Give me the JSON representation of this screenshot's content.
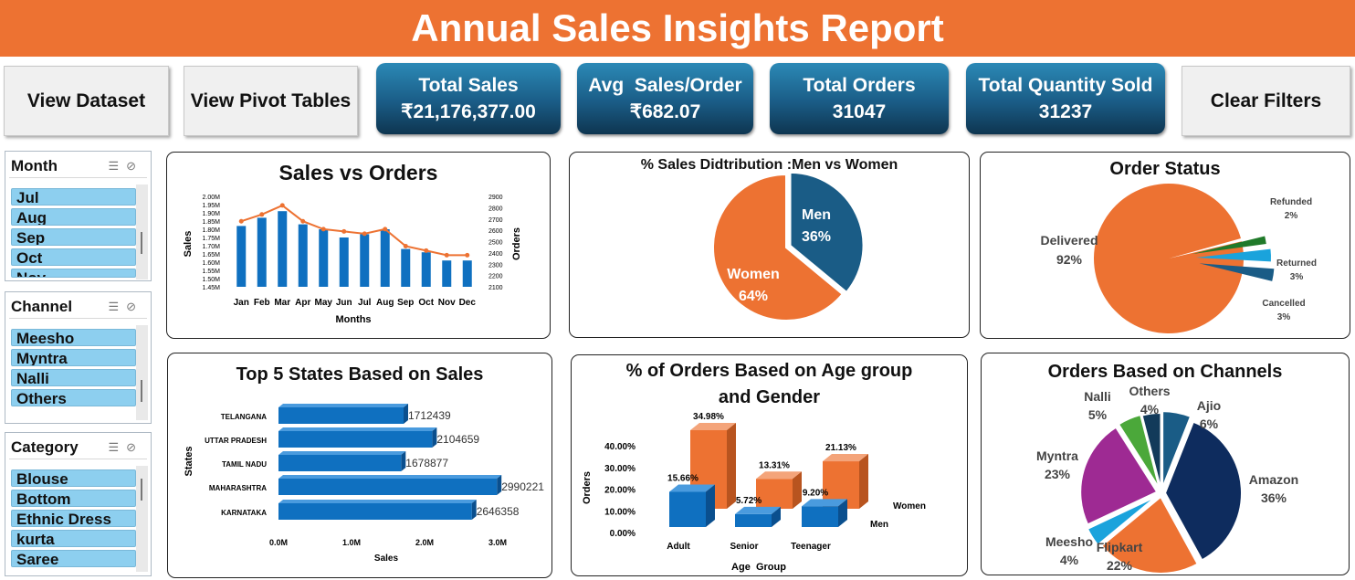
{
  "title": "Annual Sales Insights Report",
  "buttons": {
    "view_dataset": "View Dataset",
    "view_pivot": "View Pivot Tables",
    "clear_filters": "Clear Filters"
  },
  "kpis": {
    "total_sales": {
      "label": "Total Sales",
      "value": "₹21,176,377.00"
    },
    "avg_sales": {
      "label": "Avg  Sales/Order",
      "value": "₹682.07"
    },
    "total_orders": {
      "label": "Total Orders",
      "value": "31047"
    },
    "total_qty": {
      "label": "Total Quantity Sold",
      "value": "31237"
    }
  },
  "slicers": {
    "month": {
      "title": "Month",
      "items": [
        "Jul",
        "Aug",
        "Sep",
        "Oct",
        "Nov"
      ]
    },
    "channel": {
      "title": "Channel",
      "items": [
        "Meesho",
        "Myntra",
        "Nalli",
        "Others"
      ]
    },
    "category": {
      "title": "Category",
      "items": [
        "Blouse",
        "Bottom",
        "Ethnic Dress",
        "kurta",
        "Saree"
      ]
    }
  },
  "colors": {
    "orange": "#ED7232",
    "blue": "#0F70C0",
    "navy": "#1A5C86",
    "accent": "#ED7232"
  },
  "chart_data": [
    {
      "id": "sales_vs_orders",
      "type": "bar",
      "title": "Sales vs Orders",
      "xlabel": "Months",
      "ylabel": "Sales",
      "y2label": "Orders",
      "categories": [
        "Jan",
        "Feb",
        "Mar",
        "Apr",
        "May",
        "Jun",
        "Jul",
        "Aug",
        "Sep",
        "Oct",
        "Nov",
        "Dec"
      ],
      "ylim": [
        1.45,
        2.0
      ],
      "y_ticks": [
        "1.45M",
        "1.50M",
        "1.55M",
        "1.60M",
        "1.65M",
        "1.70M",
        "1.75M",
        "1.80M",
        "1.85M",
        "1.90M",
        "1.95M",
        "2.00M"
      ],
      "y2lim": [
        2100,
        2900
      ],
      "y2_ticks": [
        "2100",
        "2200",
        "2300",
        "2400",
        "2500",
        "2600",
        "2700",
        "2800",
        "2900"
      ],
      "series": [
        {
          "type": "bar",
          "axis": "left",
          "values": [
            1.82,
            1.87,
            1.91,
            1.83,
            1.8,
            1.75,
            1.77,
            1.8,
            1.68,
            1.66,
            1.61,
            1.61
          ]
        },
        {
          "type": "line",
          "axis": "right",
          "values": [
            2680,
            2740,
            2820,
            2680,
            2610,
            2590,
            2570,
            2610,
            2460,
            2420,
            2380,
            2380
          ]
        }
      ]
    },
    {
      "id": "gender_sales",
      "type": "pie",
      "title": "% Sales Didtribution :Men vs Women",
      "slices": [
        {
          "label": "Men",
          "pct_label": "36%",
          "value": 36,
          "color": "#1A5C86"
        },
        {
          "label": "Women",
          "pct_label": "64%",
          "value": 64,
          "color": "#ED7232"
        }
      ]
    },
    {
      "id": "order_status",
      "type": "pie",
      "title": "Order Status",
      "slices": [
        {
          "label": "Delivered",
          "pct_label": "92%",
          "value": 92,
          "color": "#ED7232"
        },
        {
          "label": "Refunded",
          "pct_label": "2%",
          "value": 2,
          "color": "#207A2A"
        },
        {
          "label": "Returned",
          "pct_label": "3%",
          "value": 3,
          "color": "#1AA3DC"
        },
        {
          "label": "Cancelled",
          "pct_label": "3%",
          "value": 3,
          "color": "#1A5C86"
        }
      ]
    },
    {
      "id": "top_states",
      "type": "bar",
      "title": "Top 5 States Based on Sales",
      "xlabel": "Sales",
      "ylabel": "States",
      "categories": [
        "TELANGANA",
        "UTTAR PRADESH",
        "TAMIL NADU",
        "MAHARASHTRA",
        "KARNATAKA"
      ],
      "values": [
        1712439,
        2104659,
        1678877,
        2990221,
        2646358
      ],
      "value_labels": [
        "1712439",
        "2104659",
        "1678877",
        "2990221",
        "2646358"
      ],
      "xlim": [
        0,
        3000000
      ],
      "x_ticks": [
        "0.0M",
        "1.0M",
        "2.0M",
        "3.0M"
      ]
    },
    {
      "id": "age_gender_orders",
      "type": "bar",
      "title_line1": "% of Orders Based on Age group",
      "title_line2": "and Gender",
      "xlabel": "Age  Group",
      "ylabel": "Orders",
      "categories": [
        "Adult",
        "Senior",
        "Teenager"
      ],
      "ylim": [
        0,
        40
      ],
      "y_ticks": [
        "0.00%",
        "10.00%",
        "20.00%",
        "30.00%",
        "40.00%"
      ],
      "series": [
        {
          "name": "Men",
          "values": [
            15.66,
            5.72,
            9.2
          ],
          "labels": [
            "15.66%",
            "5.72%",
            "9.20%"
          ]
        },
        {
          "name": "Women",
          "values": [
            34.98,
            13.31,
            21.13
          ],
          "labels": [
            "34.98%",
            "13.31%",
            "21.13%"
          ]
        }
      ]
    },
    {
      "id": "channels",
      "type": "pie",
      "title": "Orders Based on Channels",
      "slices": [
        {
          "label": "Ajio",
          "pct_label": "6%",
          "value": 6,
          "color": "#1A5C86"
        },
        {
          "label": "Amazon",
          "pct_label": "36%",
          "value": 36,
          "color": "#0E2C5E"
        },
        {
          "label": "Flipkart",
          "pct_label": "22%",
          "value": 22,
          "color": "#ED7232"
        },
        {
          "label": "Meesho",
          "pct_label": "4%",
          "value": 4,
          "color": "#1AA3DC"
        },
        {
          "label": "Myntra",
          "pct_label": "23%",
          "value": 23,
          "color": "#9E2A93"
        },
        {
          "label": "Nalli",
          "pct_label": "5%",
          "value": 5,
          "color": "#4BA83A"
        },
        {
          "label": "Others",
          "pct_label": "4%",
          "value": 4,
          "color": "#123A5A"
        }
      ]
    }
  ]
}
